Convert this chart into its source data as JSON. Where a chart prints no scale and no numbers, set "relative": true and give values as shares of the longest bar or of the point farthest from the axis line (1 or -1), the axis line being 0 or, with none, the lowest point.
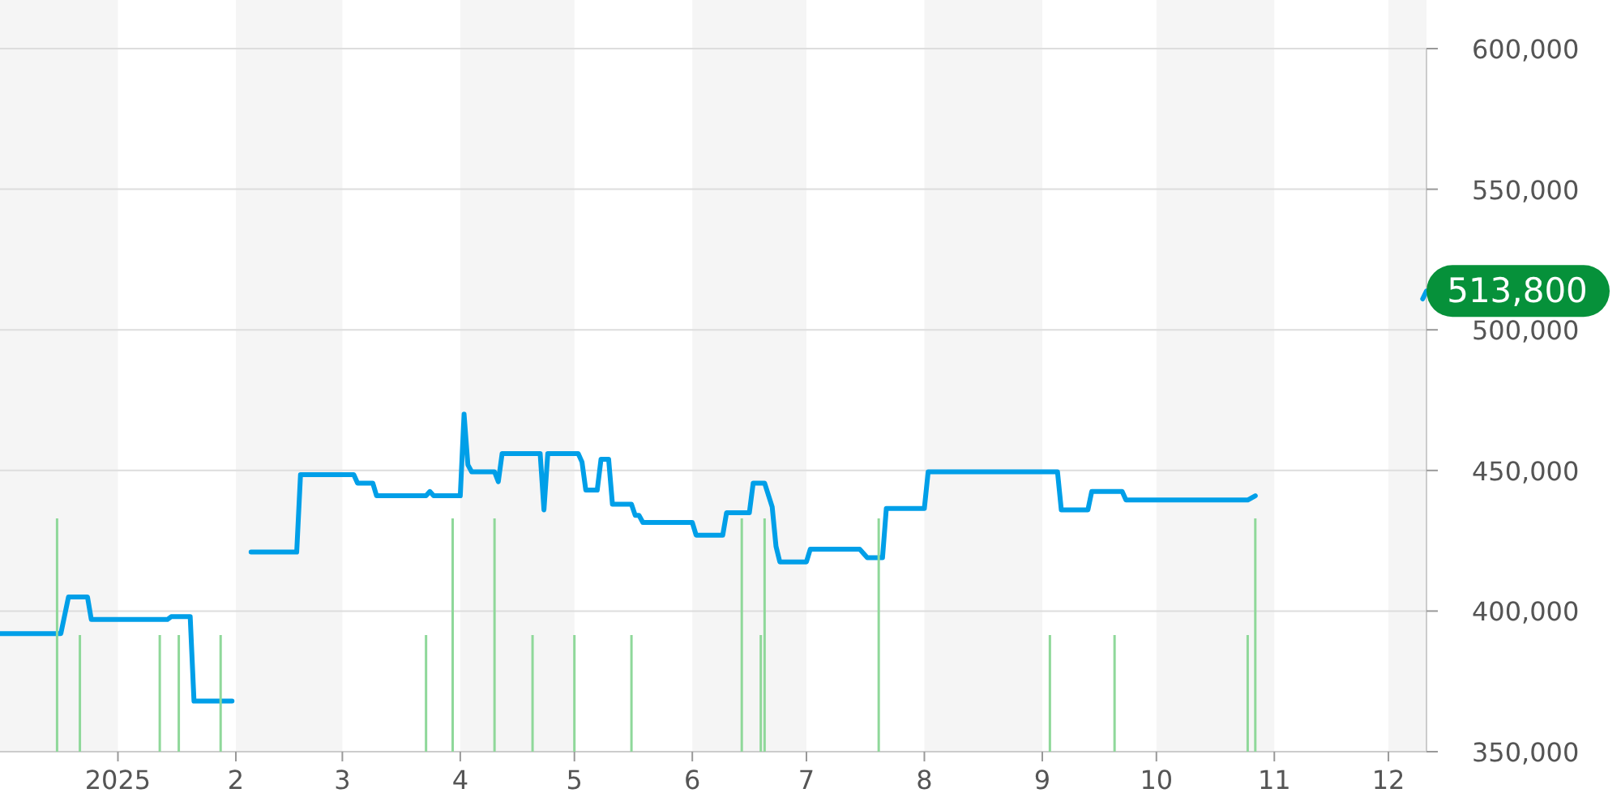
{
  "chart_data": [
    {
      "type": "line",
      "xlim": [
        "2024-12-01",
        "2025-12-11"
      ],
      "xticks": [
        {
          "value": "2025-01-01",
          "label": "2025"
        },
        {
          "value": "2025-02-01",
          "label": "2"
        },
        {
          "value": "2025-03-01",
          "label": "3"
        },
        {
          "value": "2025-04-01",
          "label": "4"
        },
        {
          "value": "2025-05-01",
          "label": "5"
        },
        {
          "value": "2025-06-01",
          "label": "6"
        },
        {
          "value": "2025-07-01",
          "label": "7"
        },
        {
          "value": "2025-08-01",
          "label": "8"
        },
        {
          "value": "2025-09-01",
          "label": "9"
        },
        {
          "value": "2025-10-01",
          "label": "10"
        },
        {
          "value": "2025-11-01",
          "label": "11"
        },
        {
          "value": "2025-12-01",
          "label": "12"
        }
      ],
      "ylim": [
        350000,
        600000
      ],
      "yticks": [
        {
          "value": 350000,
          "label": "350,000"
        },
        {
          "value": 400000,
          "label": "400,000"
        },
        {
          "value": 450000,
          "label": "450,000"
        },
        {
          "value": 500000,
          "label": "500,000"
        },
        {
          "value": 550000,
          "label": "550,000"
        },
        {
          "value": 600000,
          "label": "600,000"
        }
      ],
      "grid": "y",
      "marker": "none",
      "line_style": "solid",
      "bands": [
        {
          "axis": "x",
          "from": "2024-12-01",
          "to": "2025-01-01",
          "color": "#f5f5f5"
        },
        {
          "axis": "x",
          "from": "2025-02-01",
          "to": "2025-03-01",
          "color": "#f5f5f5"
        },
        {
          "axis": "x",
          "from": "2025-04-01",
          "to": "2025-05-01",
          "color": "#f5f5f5"
        },
        {
          "axis": "x",
          "from": "2025-06-01",
          "to": "2025-07-01",
          "color": "#f5f5f5"
        },
        {
          "axis": "x",
          "from": "2025-08-01",
          "to": "2025-09-01",
          "color": "#f5f5f5"
        },
        {
          "axis": "x",
          "from": "2025-10-01",
          "to": "2025-11-01",
          "color": "#f5f5f5"
        },
        {
          "axis": "x",
          "from": "2025-12-01",
          "to": "2025-12-11",
          "color": "#f5f5f5"
        }
      ],
      "annotations": [
        {
          "text": "513,800",
          "x": "2025-12-11",
          "y": 513800
        }
      ],
      "series": [
        {
          "color": "#009fe8",
          "x": [
            "2024-12-01",
            "2024-12-17",
            "2024-12-19",
            "2024-12-24",
            "2024-12-25",
            "2025-01-14",
            "2025-01-15",
            "2025-01-20",
            "2025-01-21",
            "2025-01-31",
            "2025-02-03",
            "2025-02-05",
            "2025-02-17",
            "2025-02-18",
            "2025-03-04",
            "2025-03-05",
            "2025-03-09",
            "2025-03-10",
            "2025-03-23",
            "2025-03-24",
            "2025-03-25",
            "2025-04-01",
            "2025-04-02",
            "2025-04-03",
            "2025-04-04",
            "2025-04-10",
            "2025-04-11",
            "2025-04-12",
            "2025-04-22",
            "2025-04-23",
            "2025-04-24",
            "2025-05-02",
            "2025-05-03",
            "2025-05-04",
            "2025-05-07",
            "2025-05-08",
            "2025-05-10",
            "2025-05-11",
            "2025-05-16",
            "2025-05-17",
            "2025-05-18",
            "2025-05-19",
            "2025-06-01",
            "2025-06-02",
            "2025-06-09",
            "2025-06-10",
            "2025-06-16",
            "2025-06-17",
            "2025-06-20",
            "2025-06-22",
            "2025-06-23",
            "2025-06-24",
            "2025-07-01",
            "2025-07-02",
            "2025-07-15",
            "2025-07-17",
            "2025-07-21",
            "2025-07-22",
            "2025-08-01",
            "2025-08-02",
            "2025-09-05",
            "2025-09-06",
            "2025-09-13",
            "2025-09-14",
            "2025-09-22",
            "2025-09-23",
            "2025-10-25",
            "2025-10-27",
            "2025-11-15",
            "2025-12-10",
            "2025-12-11"
          ],
          "values": [
            392000,
            392000,
            405000,
            405000,
            397000,
            397000,
            398000,
            398000,
            368000,
            368000,
            null,
            421000,
            421000,
            448500,
            448500,
            445500,
            445500,
            441000,
            441000,
            442500,
            441000,
            441000,
            470000,
            452000,
            449500,
            449500,
            446000,
            456000,
            456000,
            436000,
            456000,
            456000,
            453000,
            443000,
            443000,
            454000,
            454000,
            438000,
            438000,
            434000,
            434000,
            431500,
            431500,
            427000,
            427000,
            435000,
            435000,
            445500,
            445500,
            437000,
            423000,
            417500,
            417500,
            422000,
            422000,
            419000,
            419000,
            436500,
            436500,
            449500,
            449500,
            436000,
            436000,
            442500,
            442500,
            439500,
            439500,
            441000,
            null,
            511000,
            513800
          ]
        }
      ]
    },
    {
      "type": "bar",
      "relative": true,
      "xlim": [
        "2024-12-01",
        "2025-12-11"
      ],
      "series": [
        {
          "color": "#8fd89a",
          "x": [
            "2024-12-16",
            "2024-12-22",
            "2025-01-12",
            "2025-01-17",
            "2025-01-28",
            "2025-03-23",
            "2025-03-30",
            "2025-04-10",
            "2025-04-20",
            "2025-05-01",
            "2025-05-16",
            "2025-06-14",
            "2025-06-19",
            "2025-06-20",
            "2025-07-20",
            "2025-09-03",
            "2025-09-20",
            "2025-10-25",
            "2025-10-27"
          ],
          "values": [
            1,
            0.5,
            0.5,
            0.5,
            0.5,
            0.5,
            1,
            1,
            0.5,
            0.5,
            0.5,
            1,
            0.5,
            1,
            1,
            0.5,
            0.5,
            0.5,
            1
          ]
        }
      ]
    }
  ]
}
